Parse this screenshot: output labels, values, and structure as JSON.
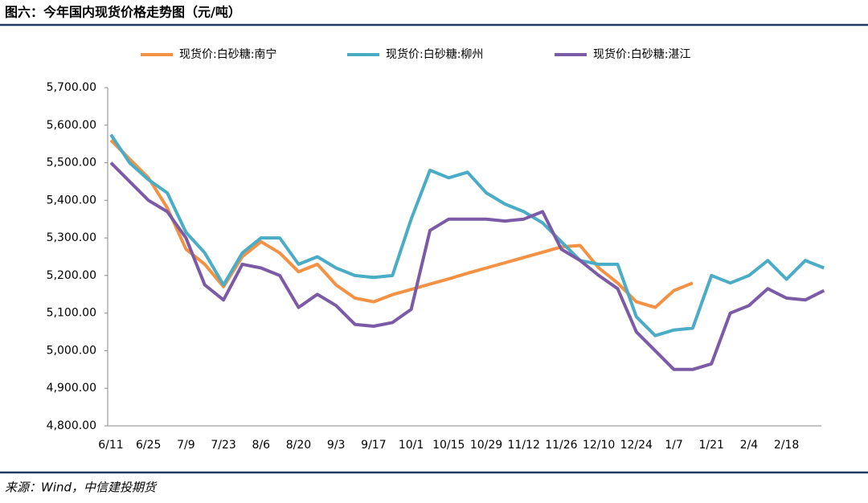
{
  "chart_data": {
    "type": "line",
    "title": "图六：今年国内现货价格走势图（元/吨）",
    "source": "来源：Wind，中信建投期货",
    "categories": [
      "6/11",
      null,
      "6/25",
      null,
      "7/9",
      null,
      "7/23",
      null,
      "8/6",
      null,
      "8/20",
      null,
      "9/3",
      null,
      "9/17",
      null,
      "10/1",
      null,
      "10/15",
      null,
      "10/29",
      null,
      "11/12",
      null,
      "11/26",
      null,
      "12/10",
      null,
      "12/24",
      null,
      "1/7",
      null,
      "1/21",
      null,
      "2/4",
      null,
      "2/18",
      null,
      null
    ],
    "series": [
      {
        "name": "现货价:白砂糖:南宁",
        "color": "#f39244",
        "values": [
          5560,
          5510,
          5460,
          5380,
          5270,
          5230,
          5170,
          5250,
          5290,
          5260,
          5210,
          5230,
          5175,
          5140,
          5130,
          5149,
          5163,
          5177,
          5191,
          5206,
          5220,
          5234,
          5248,
          5262,
          5276,
          5280,
          5220,
          5180,
          5130,
          5115,
          5160,
          5180,
          null,
          null,
          null,
          null,
          null,
          null,
          null
        ]
      },
      {
        "name": "现货价:白砂糖:柳州",
        "color": "#4bacc6",
        "values": [
          5575,
          5500,
          5455,
          5420,
          5315,
          5260,
          5175,
          5260,
          5300,
          5300,
          5230,
          5250,
          5220,
          5200,
          5195,
          5200,
          5350,
          5480,
          5460,
          5475,
          5420,
          5390,
          5370,
          5340,
          5290,
          5240,
          5230,
          5230,
          5090,
          5040,
          5055,
          5060,
          5200,
          5180,
          5200,
          5240,
          5190,
          5240,
          5220
        ]
      },
      {
        "name": "现货价:白砂糖:湛江",
        "color": "#7b5ba6",
        "values": [
          5500,
          5450,
          5400,
          5370,
          5300,
          5175,
          5135,
          5230,
          5220,
          5200,
          5115,
          5150,
          5120,
          5070,
          5065,
          5075,
          5110,
          5320,
          5350,
          5350,
          5350,
          5345,
          5350,
          5370,
          5270,
          5240,
          5200,
          5165,
          5050,
          5000,
          4950,
          4950,
          4965,
          5100,
          5120,
          5165,
          5140,
          5135,
          5160
        ]
      }
    ],
    "ylim": [
      4800,
      5700
    ],
    "yticks": [
      {
        "value": 4800,
        "label": "4,800.00"
      },
      {
        "value": 4900,
        "label": "4,900.00"
      },
      {
        "value": 5000,
        "label": "5,000.00"
      },
      {
        "value": 5100,
        "label": "5,100.00"
      },
      {
        "value": 5200,
        "label": "5,200.00"
      },
      {
        "value": 5300,
        "label": "5,300.00"
      },
      {
        "value": 5400,
        "label": "5,400.00"
      },
      {
        "value": 5500,
        "label": "5,500.00"
      },
      {
        "value": 5600,
        "label": "5,600.00"
      },
      {
        "value": 5700,
        "label": "5,700.00"
      }
    ],
    "legend": "top",
    "grid": false
  }
}
